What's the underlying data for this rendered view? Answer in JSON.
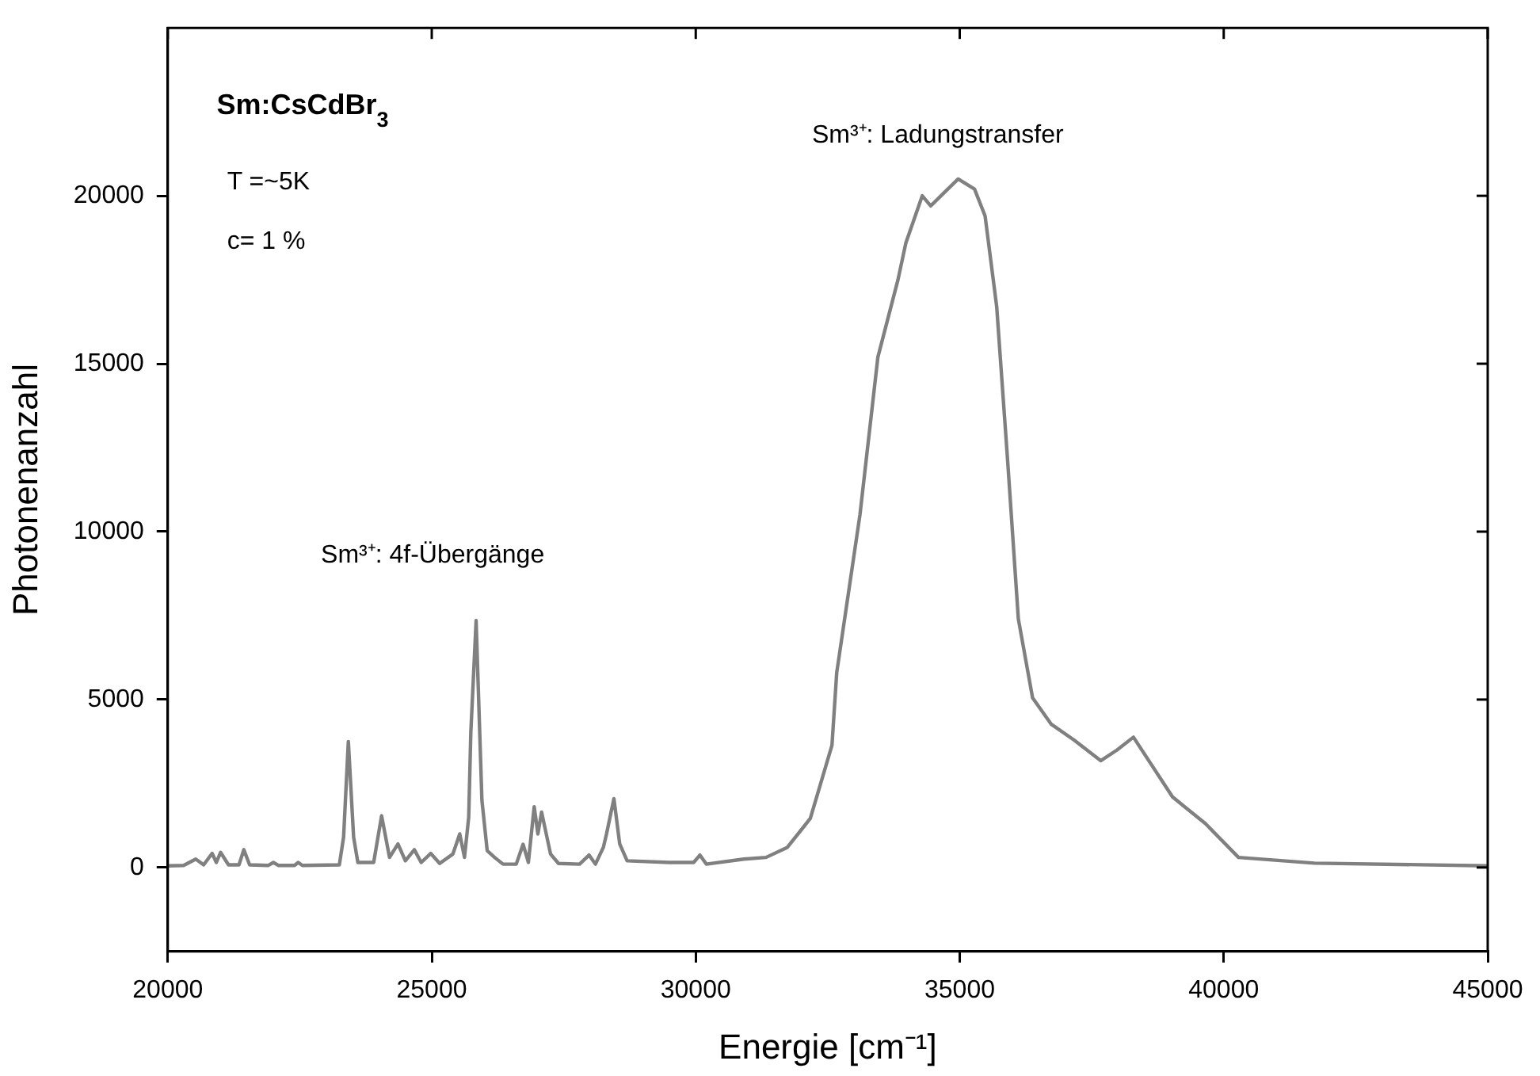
{
  "chart_data": {
    "type": "line",
    "xlabel": "Energie [cm⁻¹]",
    "ylabel": "Photonenanzahl",
    "xlim": [
      20000,
      45000
    ],
    "xticks": [
      20000,
      25000,
      30000,
      35000,
      40000,
      45000
    ],
    "ylim": [
      -2500,
      25000
    ],
    "yticks": [
      0,
      5000,
      10000,
      15000,
      20000
    ],
    "grid": false,
    "legend": false,
    "annotations": [
      "Sm:CsCdBr$_{3}$",
      "T =~5K",
      "c= 1 %",
      "Sm³⁺: 4f-Übergänge",
      "Sm³⁺: Ladungstransfer"
    ],
    "series": [
      {
        "color": "#808080",
        "x": [
          20000,
          20300,
          20530,
          20680,
          20840,
          20920,
          21000,
          21150,
          21350,
          21440,
          21550,
          21900,
          22000,
          22100,
          22400,
          22470,
          22550,
          23250,
          23330,
          23420,
          23520,
          23600,
          23900,
          24050,
          24200,
          24360,
          24500,
          24670,
          24800,
          24980,
          25150,
          25400,
          25530,
          25620,
          25700,
          25740,
          25840,
          25950,
          26050,
          26190,
          26350,
          26600,
          26730,
          26830,
          26940,
          27010,
          27080,
          27250,
          27400,
          27800,
          27980,
          28100,
          28250,
          28310,
          28450,
          28560,
          28700,
          29500,
          29960,
          30080,
          30200,
          30910,
          31330,
          31735,
          32170,
          32580,
          32670,
          33110,
          33450,
          33830,
          33980,
          34290,
          34450,
          34970,
          35280,
          35480,
          35700,
          35910,
          36110,
          36380,
          36730,
          37160,
          37670,
          37980,
          38290,
          39030,
          39650,
          40280,
          41720,
          45000
        ],
        "values": [
          50,
          60,
          250,
          80,
          420,
          150,
          450,
          80,
          80,
          530,
          80,
          60,
          150,
          60,
          60,
          150,
          60,
          80,
          900,
          3750,
          900,
          150,
          150,
          1540,
          300,
          700,
          200,
          530,
          150,
          420,
          120,
          400,
          1000,
          300,
          1500,
          4030,
          7350,
          2000,
          500,
          300,
          100,
          100,
          690,
          150,
          1810,
          1000,
          1650,
          400,
          120,
          100,
          370,
          100,
          600,
          1000,
          2050,
          700,
          200,
          150,
          150,
          370,
          100,
          250,
          300,
          600,
          1460,
          3640,
          5800,
          10500,
          15200,
          17500,
          18600,
          20000,
          19700,
          20500,
          20200,
          19400,
          16700,
          12050,
          7400,
          5050,
          4270,
          3800,
          3180,
          3500,
          3880,
          2100,
          1310,
          300,
          130,
          50
        ]
      }
    ]
  }
}
